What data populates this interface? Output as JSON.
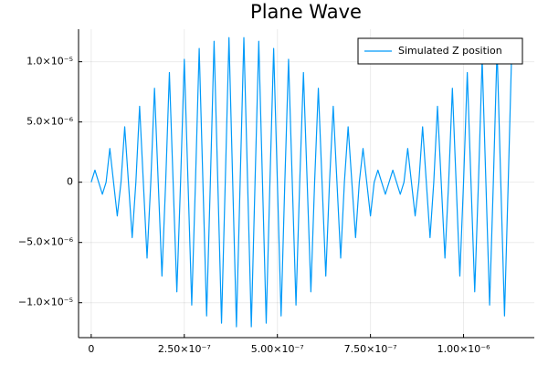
{
  "chart_data": {
    "type": "line",
    "title": "Plane Wave",
    "x": [
      0,
      1e-08,
      2e-08,
      3e-08,
      4e-08,
      5e-08,
      6e-08,
      7e-08,
      8e-08,
      9e-08,
      1e-07,
      1.1e-07,
      1.2e-07,
      1.3e-07,
      1.4e-07,
      1.5e-07,
      1.6e-07,
      1.7e-07,
      1.8e-07,
      1.9e-07,
      2e-07,
      2.1e-07,
      2.2e-07,
      2.3e-07,
      2.4e-07,
      2.5e-07,
      2.6e-07,
      2.7e-07,
      2.8e-07,
      2.9e-07,
      3e-07,
      3.1e-07,
      3.2e-07,
      3.3e-07,
      3.4e-07,
      3.5e-07,
      3.6e-07,
      3.7e-07,
      3.8e-07,
      3.9e-07,
      4e-07,
      4.1e-07,
      4.2e-07,
      4.3e-07,
      4.4e-07,
      4.5e-07,
      4.6e-07,
      4.7e-07,
      4.8e-07,
      4.9e-07,
      5e-07,
      5.1e-07,
      5.2e-07,
      5.3e-07,
      5.4e-07,
      5.5e-07,
      5.6e-07,
      5.7e-07,
      5.8e-07,
      5.9e-07,
      6e-07,
      6.1e-07,
      6.2e-07,
      6.3e-07,
      6.4e-07,
      6.5e-07,
      6.6e-07,
      6.7e-07,
      6.8e-07,
      6.9e-07,
      7e-07,
      7.1e-07,
      7.2e-07,
      7.3e-07,
      7.4e-07,
      7.5e-07,
      7.6e-07,
      7.7e-07,
      7.8e-07,
      7.9e-07,
      8e-07,
      8.1e-07,
      8.2e-07,
      8.3e-07,
      8.4e-07,
      8.5e-07,
      8.6e-07,
      8.7e-07,
      8.8e-07,
      8.9e-07,
      9e-07,
      9.1e-07,
      9.2e-07,
      9.3e-07,
      9.4e-07,
      9.5e-07,
      9.6e-07,
      9.7e-07,
      9.8e-07,
      9.9e-07,
      1e-06,
      1.01e-06,
      1.02e-06,
      1.03e-06,
      1.04e-06,
      1.05e-06,
      1.06e-06,
      1.07e-06,
      1.08e-06,
      1.09e-06,
      1.1e-06,
      1.11e-06,
      1.12e-06,
      1.13e-06
    ],
    "series": [
      {
        "name": "Simulated Z position",
        "color": "#009af9",
        "values": [
          0,
          1e-06,
          0,
          -1e-06,
          0,
          2.8e-06,
          0,
          -2.8e-06,
          0,
          4.6e-06,
          0,
          -4.6e-06,
          0,
          6.3e-06,
          0,
          -6.3e-06,
          0,
          7.8e-06,
          0,
          -7.8e-06,
          0,
          9.1e-06,
          0,
          -9.1e-06,
          0,
          1.02e-05,
          0,
          -1.02e-05,
          0,
          1.11e-05,
          0,
          -1.11e-05,
          0,
          1.17e-05,
          0,
          -1.17e-05,
          0,
          1.2e-05,
          0,
          -1.2e-05,
          0,
          1.2e-05,
          0,
          -1.2e-05,
          0,
          1.17e-05,
          0,
          -1.17e-05,
          0,
          1.11e-05,
          0,
          -1.11e-05,
          0,
          1.02e-05,
          0,
          -1.02e-05,
          0,
          9.1e-06,
          0,
          -9.1e-06,
          0,
          7.8e-06,
          0,
          -7.8e-06,
          0,
          6.3e-06,
          0,
          -6.3e-06,
          0,
          4.6e-06,
          0,
          -4.6e-06,
          0,
          2.8e-06,
          0,
          -2.8e-06,
          0,
          1e-06,
          0,
          -1e-06,
          0,
          1e-06,
          0,
          -1e-06,
          0,
          2.8e-06,
          0,
          -2.8e-06,
          0,
          4.6e-06,
          0,
          -4.6e-06,
          0,
          6.3e-06,
          0,
          -6.3e-06,
          0,
          7.8e-06,
          0,
          -7.8e-06,
          0,
          9.1e-06,
          0,
          -9.1e-06,
          0,
          1.02e-05,
          0,
          -1.02e-05,
          0,
          1.11e-05,
          0,
          -1.11e-05,
          0,
          1.17e-05
        ]
      }
    ],
    "xlim": [
      -3.4e-08,
      1.19e-06
    ],
    "xticks": [
      0,
      {
        "value": 2.5e-07,
        "label": "2.50×10⁻⁷"
      },
      {
        "value": 5e-07,
        "label": "5.00×10⁻⁷"
      },
      {
        "value": 7.5e-07,
        "label": "7.50×10⁻⁷"
      },
      {
        "value": 1e-06,
        "label": "1.00×10⁻⁶"
      }
    ],
    "ylim": [
      -1.29e-05,
      1.27e-05
    ],
    "yticks": [
      {
        "value": -1e-05,
        "label": "−1.0×10⁻⁵"
      },
      {
        "value": -5e-06,
        "label": "−5.0×10⁻⁶"
      },
      0,
      {
        "value": 5e-06,
        "label": "5.0×10⁻⁶"
      },
      {
        "value": 1e-05,
        "label": "1.0×10⁻⁵"
      }
    ],
    "grid": true,
    "legend": "top-right"
  }
}
